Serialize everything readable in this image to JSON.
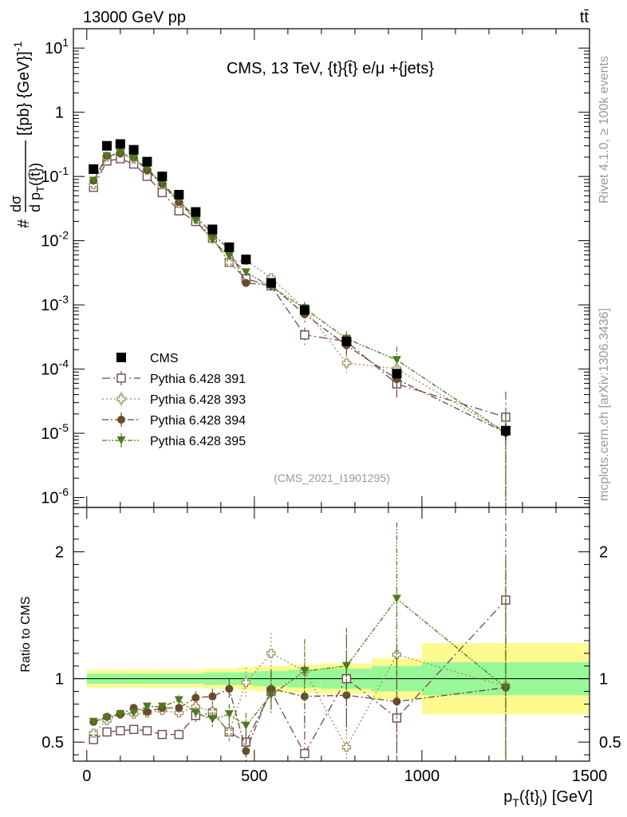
{
  "header": {
    "left_title": "13000 GeV pp",
    "right_title": "tt̄"
  },
  "side_labels": {
    "rivet": "Rivet 4.1.0, ≥ 100k events",
    "mcplots": "mcplots.cern.ch [arXiv:1306.3436]"
  },
  "chart_data": {
    "type": "scatter",
    "title": "CMS, 13 TeV, {t}{t̄} e/μ +{jets}",
    "watermark": "(CMS_2021_I1901295)",
    "xlabel": "p_T({t}_l) [GeV]",
    "ylabel_main": "#dσ/d p_T({t̄}) [{pb} {GeV}^-1]",
    "ylabel_ratio": "Ratio to CMS",
    "xlim": [
      -40,
      1500
    ],
    "ylim_main": [
      7e-07,
      20
    ],
    "ylim_ratio": [
      0.35,
      2.35
    ],
    "x_ticks": [
      "0",
      "500",
      "1000",
      "1500"
    ],
    "y_ticks_main": [
      {
        "base": "10",
        "exp": "1",
        "value": 10
      },
      {
        "base": "1",
        "exp": "",
        "value": 1
      },
      {
        "base": "10",
        "exp": "-1",
        "value": 0.1
      },
      {
        "base": "10",
        "exp": "-2",
        "value": 0.01
      },
      {
        "base": "10",
        "exp": "-3",
        "value": 0.001
      },
      {
        "base": "10",
        "exp": "-4",
        "value": 0.0001
      },
      {
        "base": "10",
        "exp": "-5",
        "value": 1e-05
      },
      {
        "base": "10",
        "exp": "-6",
        "value": 1e-06
      }
    ],
    "y_ticks_ratio": [
      "0.5",
      "1",
      "2"
    ],
    "x_centers": [
      20,
      60,
      100,
      140,
      180,
      225,
      275,
      325,
      375,
      425,
      475,
      550,
      650,
      775,
      925,
      1250
    ],
    "x_edges": [
      0,
      40,
      80,
      120,
      160,
      200,
      250,
      300,
      350,
      400,
      450,
      500,
      600,
      700,
      850,
      1000,
      1500
    ],
    "cms": [
      0.13,
      0.3,
      0.32,
      0.26,
      0.17,
      0.1,
      0.052,
      0.028,
      0.015,
      0.0079,
      0.0051,
      0.0022,
      0.00083,
      0.00027,
      8.5e-05,
      1.1e-05
    ],
    "band_inner": [
      0.04,
      0.04,
      0.04,
      0.04,
      0.04,
      0.04,
      0.04,
      0.04,
      0.05,
      0.05,
      0.05,
      0.06,
      0.07,
      0.08,
      0.1,
      0.13
    ],
    "band_outer": [
      0.07,
      0.07,
      0.07,
      0.07,
      0.07,
      0.07,
      0.07,
      0.07,
      0.08,
      0.08,
      0.09,
      0.1,
      0.11,
      0.12,
      0.16,
      0.28
    ],
    "series": [
      {
        "name": "Pythia 6.428 391",
        "color": "#704858",
        "marker": "open-square",
        "dash": "10,4,2,4",
        "ratio": [
          0.52,
          0.58,
          0.59,
          0.6,
          0.59,
          0.56,
          0.56,
          0.71,
          0.73,
          0.58,
          0.5,
          0.9,
          0.41,
          1.0,
          0.69,
          1.62
        ],
        "err": [
          0.02,
          0.02,
          0.02,
          0.02,
          0.02,
          0.03,
          0.04,
          0.05,
          0.06,
          0.07,
          0.1,
          0.14,
          0.3,
          0.35,
          0.45,
          1.5
        ]
      },
      {
        "name": "Pythia 6.428 393",
        "color": "#9a8c58",
        "marker": "open-cross",
        "dash": "2,3",
        "ratio": [
          0.57,
          0.67,
          0.72,
          0.72,
          0.73,
          0.75,
          0.73,
          0.78,
          0.74,
          0.58,
          0.97,
          1.2,
          1.06,
          0.46,
          1.19,
          0.94
        ],
        "err": [
          0.02,
          0.02,
          0.02,
          0.02,
          0.02,
          0.03,
          0.04,
          0.05,
          0.06,
          0.08,
          0.12,
          0.16,
          0.25,
          0.3,
          0.5,
          1.2
        ]
      },
      {
        "name": "Pythia 6.428 394",
        "color": "#6b4a2c",
        "marker": "filled-circle",
        "dash": "8,3,2,3",
        "ratio": [
          0.66,
          0.7,
          0.72,
          0.77,
          0.74,
          0.77,
          0.77,
          0.85,
          0.86,
          0.92,
          0.43,
          0.92,
          0.86,
          0.87,
          0.82,
          0.93
        ],
        "err": [
          0.02,
          0.02,
          0.02,
          0.02,
          0.02,
          0.03,
          0.04,
          0.05,
          0.06,
          0.08,
          0.1,
          0.15,
          0.25,
          0.3,
          0.45,
          1.0
        ]
      },
      {
        "name": "Pythia 6.428 395",
        "color": "#4c7a1c",
        "marker": "filled-triangle-down",
        "dash": "6,2,2,2,2,2",
        "ratio": [
          0.66,
          0.69,
          0.72,
          0.73,
          0.78,
          0.78,
          0.83,
          0.73,
          0.68,
          0.72,
          0.63,
          0.87,
          1.06,
          1.1,
          1.63,
          0.93
        ],
        "err": [
          0.02,
          0.02,
          0.02,
          0.02,
          0.02,
          0.03,
          0.04,
          0.05,
          0.06,
          0.08,
          0.1,
          0.15,
          0.25,
          0.3,
          0.6,
          1.0
        ]
      }
    ],
    "legend": {
      "data_label": "CMS",
      "placement": "lower-left"
    },
    "colors": {
      "data": "#000000",
      "band_inner": "#98f898",
      "band_outer": "#fdfa90",
      "watermark": "#999999"
    }
  }
}
